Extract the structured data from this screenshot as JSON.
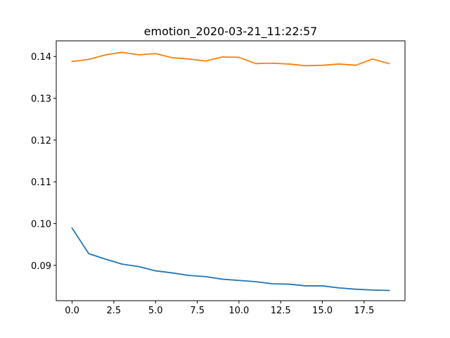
{
  "chart_data": {
    "type": "line",
    "title": "emotion_2020-03-21_11:22:57",
    "xlabel": "",
    "ylabel": "",
    "xlim": [
      -0.95,
      19.95
    ],
    "ylim": [
      0.08155,
      0.14375
    ],
    "xticks": [
      0.0,
      2.5,
      5.0,
      7.5,
      10.0,
      12.5,
      15.0,
      17.5
    ],
    "xtick_labels": [
      "0.0",
      "2.5",
      "5.0",
      "7.5",
      "10.0",
      "12.5",
      "15.0",
      "17.5"
    ],
    "yticks": [
      0.09,
      0.1,
      0.11,
      0.12,
      0.13,
      0.14
    ],
    "ytick_labels": [
      "0.09",
      "0.10",
      "0.11",
      "0.12",
      "0.13",
      "0.14"
    ],
    "grid": false,
    "x": [
      0,
      1,
      2,
      3,
      4,
      5,
      6,
      7,
      8,
      9,
      10,
      11,
      12,
      13,
      14,
      15,
      16,
      17,
      18,
      19
    ],
    "series": [
      {
        "color": "#1f77b4",
        "values": [
          0.0989,
          0.0928,
          0.0915,
          0.0903,
          0.0897,
          0.0887,
          0.0882,
          0.0876,
          0.0873,
          0.0867,
          0.0864,
          0.0861,
          0.0856,
          0.0855,
          0.0851,
          0.0851,
          0.0846,
          0.0843,
          0.0841,
          0.084
        ]
      },
      {
        "color": "#ff7f0e",
        "values": [
          0.1388,
          0.1393,
          0.1404,
          0.141,
          0.1404,
          0.1407,
          0.1397,
          0.1394,
          0.1389,
          0.1399,
          0.1398,
          0.1383,
          0.1384,
          0.1382,
          0.1378,
          0.1379,
          0.1382,
          0.1379,
          0.1394,
          0.1383
        ]
      }
    ]
  }
}
